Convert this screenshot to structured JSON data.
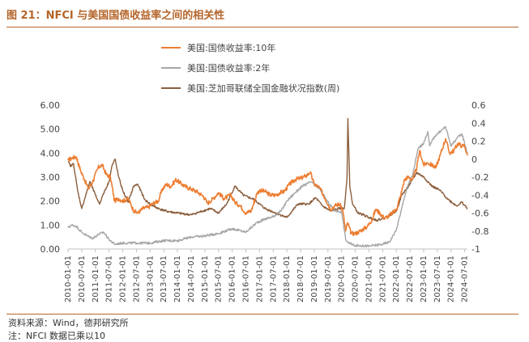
{
  "title": "图 21：NFCI 与美国国债收益率之间的相关性",
  "source": "资料来源：Wind，德邦研究所",
  "note": "注：NFCI 数据已乘以10",
  "chart_data": {
    "type": "line",
    "title": "图 21：NFCI 与美国国债收益率之间的相关性",
    "left_axis": {
      "ticks": [
        "0.00",
        "1.00",
        "2.00",
        "3.00",
        "4.00",
        "5.00",
        "6.00"
      ],
      "ylim": [
        0,
        6
      ]
    },
    "right_axis": {
      "ticks": [
        "0.6",
        "0.4",
        "0.2",
        "0",
        "-0.2",
        "-0.4",
        "-0.6",
        "-0.8",
        "-1"
      ],
      "ylim": [
        -1,
        0.6
      ]
    },
    "x_range": [
      2010.0,
      2024.6
    ],
    "x_ticks": [
      "2010-01-01",
      "2010-07-01",
      "2011-01-01",
      "2011-07-01",
      "2012-01-01",
      "2012-07-01",
      "2013-01-01",
      "2013-07-01",
      "2014-01-01",
      "2014-07-01",
      "2015-01-01",
      "2015-07-01",
      "2016-01-01",
      "2016-07-01",
      "2017-01-01",
      "2017-07-01",
      "2018-01-01",
      "2018-07-01",
      "2019-01-01",
      "2019-07-01",
      "2020-01-01",
      "2020-07-01",
      "2021-01-01",
      "2021-07-01",
      "2022-01-01",
      "2022-07-01",
      "2023-01-01",
      "2023-07-01",
      "2024-01-01",
      "2024-07-01"
    ],
    "legend_position": "top",
    "series": [
      {
        "name": "美国:国债收益率:10年",
        "axis": "left",
        "color": "#ed7d31",
        "x": [
          2010.0,
          2010.15,
          2010.3,
          2010.45,
          2010.6,
          2010.75,
          2010.9,
          2011.1,
          2011.25,
          2011.4,
          2011.55,
          2011.7,
          2011.85,
          2012.0,
          2012.2,
          2012.4,
          2012.55,
          2012.75,
          2012.95,
          2013.1,
          2013.3,
          2013.45,
          2013.6,
          2013.75,
          2013.95,
          2014.1,
          2014.3,
          2014.5,
          2014.7,
          2014.95,
          2015.1,
          2015.3,
          2015.5,
          2015.7,
          2015.95,
          2016.1,
          2016.3,
          2016.5,
          2016.7,
          2016.9,
          2017.0,
          2017.2,
          2017.4,
          2017.6,
          2017.75,
          2017.9,
          2018.1,
          2018.3,
          2018.5,
          2018.7,
          2018.85,
          2019.0,
          2019.2,
          2019.4,
          2019.6,
          2019.75,
          2019.95,
          2020.05,
          2020.15,
          2020.22,
          2020.35,
          2020.5,
          2020.6,
          2020.75,
          2020.95,
          2021.1,
          2021.25,
          2021.4,
          2021.55,
          2021.7,
          2021.85,
          2022.0,
          2022.15,
          2022.3,
          2022.45,
          2022.6,
          2022.75,
          2022.85,
          2023.0,
          2023.15,
          2023.3,
          2023.45,
          2023.6,
          2023.8,
          2023.95,
          2024.1,
          2024.25,
          2024.4,
          2024.5,
          2024.6
        ],
        "values": [
          3.7,
          3.8,
          3.85,
          3.3,
          2.9,
          2.5,
          2.8,
          3.4,
          3.5,
          3.1,
          3.0,
          2.0,
          2.1,
          2.0,
          2.1,
          1.6,
          1.5,
          1.7,
          1.75,
          1.9,
          2.0,
          2.5,
          2.7,
          2.6,
          2.9,
          2.75,
          2.6,
          2.5,
          2.4,
          2.2,
          1.9,
          2.1,
          2.35,
          2.1,
          2.25,
          1.95,
          1.8,
          1.5,
          1.6,
          2.3,
          2.45,
          2.4,
          2.25,
          2.25,
          2.35,
          2.4,
          2.7,
          2.9,
          2.95,
          3.05,
          3.2,
          2.7,
          2.55,
          2.1,
          1.65,
          1.8,
          1.9,
          1.55,
          0.75,
          1.1,
          0.65,
          0.65,
          0.7,
          0.8,
          0.95,
          1.2,
          1.65,
          1.5,
          1.3,
          1.35,
          1.5,
          1.65,
          2.2,
          2.9,
          3.0,
          2.9,
          3.4,
          4.1,
          3.5,
          3.6,
          3.5,
          3.4,
          3.9,
          4.6,
          4.0,
          4.1,
          4.4,
          4.3,
          4.3,
          3.9
        ]
      },
      {
        "name": "美国:国债收益率:2年",
        "axis": "left",
        "color": "#a6a6a6",
        "x": [
          2010.0,
          2010.15,
          2010.3,
          2010.5,
          2010.7,
          2010.9,
          2011.1,
          2011.3,
          2011.5,
          2011.7,
          2012.0,
          2012.5,
          2013.0,
          2013.5,
          2014.0,
          2014.5,
          2015.0,
          2015.5,
          2016.0,
          2016.5,
          2016.9,
          2017.2,
          2017.5,
          2017.8,
          2018.0,
          2018.3,
          2018.6,
          2018.9,
          2019.2,
          2019.5,
          2019.75,
          2020.0,
          2020.15,
          2020.25,
          2020.5,
          2021.0,
          2021.5,
          2021.75,
          2022.0,
          2022.2,
          2022.4,
          2022.6,
          2022.8,
          2023.0,
          2023.15,
          2023.22,
          2023.4,
          2023.6,
          2023.8,
          2024.0,
          2024.2,
          2024.4,
          2024.6
        ],
        "values": [
          0.9,
          1.0,
          0.95,
          0.7,
          0.55,
          0.45,
          0.6,
          0.7,
          0.4,
          0.2,
          0.25,
          0.25,
          0.25,
          0.35,
          0.35,
          0.5,
          0.55,
          0.65,
          0.85,
          0.7,
          1.1,
          1.25,
          1.35,
          1.6,
          2.0,
          2.35,
          2.65,
          2.8,
          2.5,
          1.95,
          1.6,
          1.55,
          0.4,
          0.25,
          0.15,
          0.12,
          0.2,
          0.3,
          0.8,
          1.7,
          2.6,
          3.1,
          4.2,
          4.4,
          4.9,
          4.3,
          4.7,
          4.9,
          5.1,
          4.3,
          4.6,
          4.8,
          4.0
        ]
      },
      {
        "name": "美国:芝加哥联储全国金融状况指数(周)",
        "axis": "right",
        "color": "#8b5e3c",
        "x": [
          2010.0,
          2010.1,
          2010.2,
          2010.35,
          2010.5,
          2010.6,
          2010.8,
          2011.0,
          2011.15,
          2011.3,
          2011.5,
          2011.6,
          2011.72,
          2011.85,
          2012.0,
          2012.2,
          2012.4,
          2012.55,
          2012.8,
          2013.0,
          2013.3,
          2013.6,
          2014.0,
          2014.5,
          2014.9,
          2015.2,
          2015.5,
          2015.8,
          2016.1,
          2016.4,
          2016.8,
          2017.2,
          2017.6,
          2018.0,
          2018.4,
          2018.8,
          2019.05,
          2019.3,
          2019.6,
          2019.9,
          2020.1,
          2020.2,
          2020.23,
          2020.3,
          2020.4,
          2020.6,
          2020.8,
          2021.0,
          2021.3,
          2021.6,
          2022.0,
          2022.2,
          2022.45,
          2022.75,
          2023.0,
          2023.3,
          2023.6,
          2023.9,
          2024.2,
          2024.4,
          2024.6
        ],
        "values": [
          -0.03,
          -0.08,
          -0.05,
          -0.35,
          -0.55,
          -0.45,
          -0.25,
          -0.4,
          -0.5,
          -0.38,
          -0.25,
          -0.08,
          0.0,
          -0.2,
          -0.35,
          -0.48,
          -0.3,
          -0.28,
          -0.45,
          -0.5,
          -0.55,
          -0.58,
          -0.6,
          -0.62,
          -0.58,
          -0.55,
          -0.6,
          -0.5,
          -0.3,
          -0.4,
          -0.45,
          -0.55,
          -0.6,
          -0.65,
          -0.5,
          -0.5,
          -0.43,
          -0.52,
          -0.58,
          -0.55,
          -0.55,
          -0.2,
          0.45,
          -0.3,
          -0.5,
          -0.6,
          -0.62,
          -0.65,
          -0.68,
          -0.65,
          -0.58,
          -0.4,
          -0.3,
          -0.15,
          -0.2,
          -0.3,
          -0.35,
          -0.45,
          -0.52,
          -0.48,
          -0.55
        ]
      }
    ]
  }
}
